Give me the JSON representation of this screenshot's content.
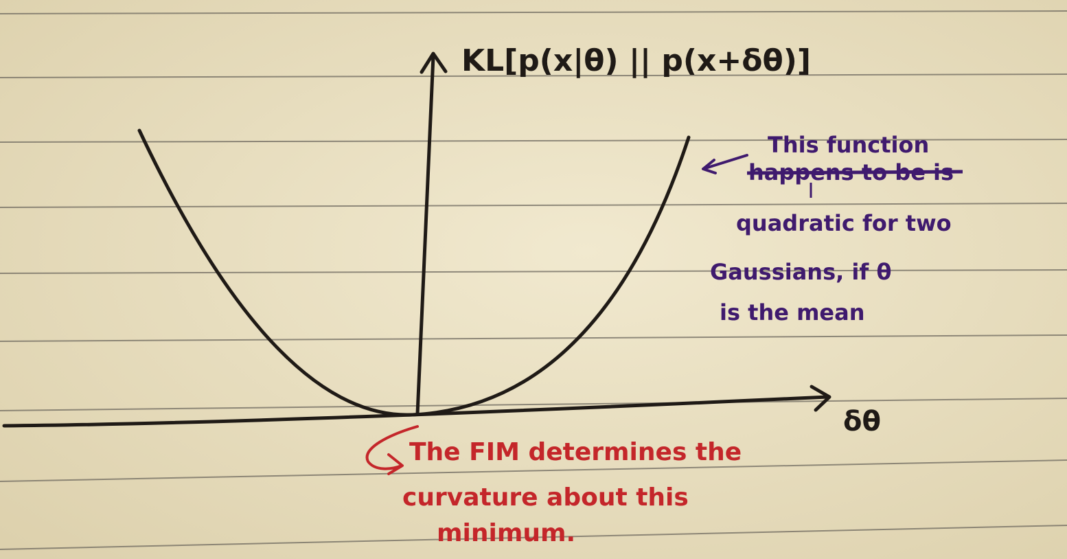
{
  "y_axis_label": "KL[p(x|θ) || p(x+δθ)]",
  "x_axis_label": "δθ",
  "note_purple": {
    "lines": [
      "This function",
      "happens to be is",
      "quadratic for two",
      "Gaussians, if θ",
      "is the mean"
    ],
    "struck_text": "happens to be"
  },
  "note_red": {
    "lines": [
      "The FIM determines the",
      "curvature about this",
      "minimum."
    ]
  },
  "colors": {
    "paper": "#efe6c9",
    "rule_lines": "#6f6a60",
    "black_ink": "#1f1a16",
    "purple_ink": "#3f1a6e",
    "red_ink": "#c4262a"
  }
}
